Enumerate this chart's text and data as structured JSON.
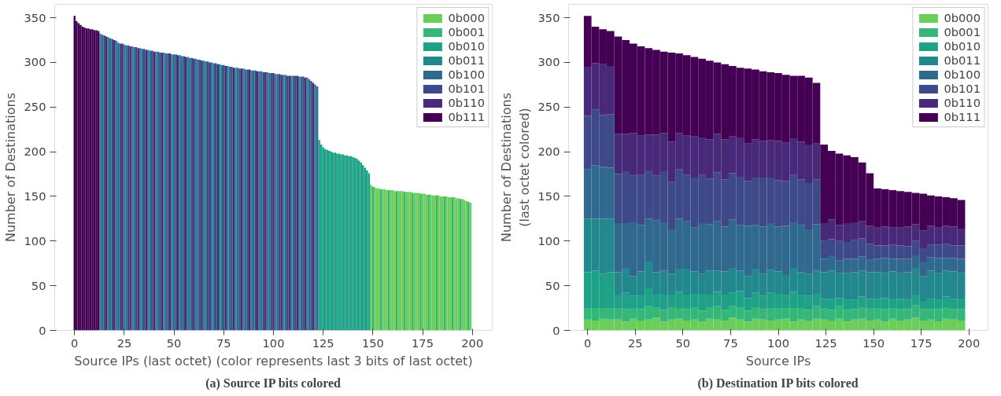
{
  "chart_data": [
    {
      "type": "bar",
      "xlabel": "Source IPs (last octet) (color represents last 3 bits of last octet)",
      "ylabel": "Number of Destinations",
      "xlim": [
        -10,
        210
      ],
      "ylim": [
        0,
        365
      ],
      "xticks": [
        0,
        25,
        50,
        75,
        100,
        125,
        150,
        175,
        200
      ],
      "yticks": [
        0,
        50,
        100,
        150,
        200,
        250,
        300,
        350
      ],
      "legend": "top right",
      "grid": false,
      "annotations": [
        "(a) Source IP bits colored"
      ],
      "series": [
        {
          "name": "0b000",
          "color": "#6ccd5a",
          "x": [
            149,
            151,
            152,
            153,
            155,
            156,
            157,
            159,
            160,
            161,
            163,
            164,
            165,
            167,
            168,
            169,
            171,
            172,
            173,
            175,
            176,
            177,
            179,
            180,
            181,
            183,
            184,
            185,
            187,
            188,
            189,
            191,
            192,
            193,
            195,
            196,
            197,
            199
          ],
          "values": [
            163,
            160,
            159,
            159,
            158,
            158,
            157,
            157,
            157,
            156,
            156,
            156,
            156,
            155,
            155,
            155,
            154,
            154,
            154,
            153,
            153,
            152,
            152,
            151,
            151,
            151,
            150,
            150,
            150,
            149,
            149,
            149,
            148,
            148,
            147,
            146,
            145,
            143
          ]
        },
        {
          "name": "0b001",
          "color": "#35b779",
          "x": [
            150,
            154,
            158,
            162,
            166,
            170,
            174,
            178,
            182,
            186,
            190,
            194,
            198
          ],
          "values": [
            161,
            158,
            157,
            156,
            155,
            154,
            153,
            152,
            151,
            150,
            149,
            147,
            144
          ]
        },
        {
          "name": "0b010",
          "color": "#1fa187",
          "x": [
            123,
            124,
            125,
            126,
            127,
            128,
            129,
            130,
            131,
            132,
            133,
            134,
            135,
            136,
            137,
            138,
            139,
            140,
            141,
            142,
            143,
            144,
            145,
            146,
            147,
            148
          ],
          "values": [
            213,
            208,
            205,
            203,
            202,
            201,
            200,
            199,
            199,
            198,
            198,
            197,
            197,
            196,
            196,
            195,
            195,
            194,
            193,
            192,
            190,
            188,
            185,
            182,
            179,
            176
          ]
        },
        {
          "name": "0b011",
          "color": "#23888e",
          "x": [
            13,
            17,
            21,
            25,
            29,
            33,
            37,
            41,
            45,
            49,
            53,
            57,
            61,
            65,
            69,
            73,
            77,
            81,
            85,
            89,
            93,
            97,
            101,
            105,
            109,
            113,
            117,
            121
          ],
          "values": [
            332,
            328,
            324,
            320,
            318,
            316,
            314,
            312,
            311,
            309,
            308,
            306,
            304,
            302,
            300,
            298,
            296,
            294,
            293,
            291,
            290,
            289,
            287,
            286,
            285,
            284,
            283,
            275
          ]
        },
        {
          "name": "0b100",
          "color": "#31688e",
          "x": [
            14,
            18,
            22,
            26,
            30,
            34,
            38,
            42,
            46,
            50,
            54,
            58,
            62,
            66,
            70,
            74,
            78,
            82,
            86,
            90,
            94,
            98,
            102,
            106,
            110,
            114,
            118,
            122
          ],
          "values": [
            331,
            327,
            322,
            319,
            317,
            315,
            313,
            312,
            310,
            309,
            307,
            305,
            303,
            301,
            299,
            297,
            295,
            294,
            292,
            291,
            290,
            288,
            287,
            286,
            285,
            284,
            281,
            273
          ]
        },
        {
          "name": "0b101",
          "color": "#3e4989",
          "x": [
            15,
            19,
            23,
            27,
            31,
            35,
            39,
            43,
            47,
            51,
            55,
            59,
            63,
            67,
            71,
            75,
            79,
            83,
            87,
            91,
            95,
            99,
            103,
            107,
            111,
            115,
            119
          ],
          "values": [
            330,
            326,
            321,
            319,
            317,
            315,
            313,
            311,
            310,
            309,
            307,
            305,
            303,
            301,
            299,
            297,
            295,
            293,
            292,
            291,
            289,
            288,
            287,
            285,
            285,
            284,
            279
          ]
        },
        {
          "name": "0b110",
          "color": "#482878",
          "x": [
            16,
            20,
            24,
            28,
            32,
            36,
            40,
            44,
            48,
            52,
            56,
            60,
            64,
            68,
            72,
            76,
            80,
            84,
            88,
            92,
            96,
            100,
            104,
            108,
            112,
            116,
            120
          ],
          "values": [
            329,
            325,
            321,
            318,
            316,
            314,
            312,
            311,
            310,
            308,
            306,
            304,
            302,
            300,
            298,
            296,
            294,
            293,
            292,
            290,
            289,
            288,
            286,
            285,
            285,
            283,
            277
          ]
        },
        {
          "name": "0b111",
          "color": "#440154",
          "x": [
            0,
            1,
            2,
            3,
            4,
            5,
            6,
            7,
            8,
            9,
            10,
            11,
            12
          ],
          "values": [
            352,
            346,
            344,
            342,
            340,
            339,
            338,
            338,
            337,
            337,
            336,
            336,
            335
          ]
        }
      ]
    },
    {
      "type": "bar",
      "stacked": true,
      "xlabel": "Source IPs",
      "ylabel": "Number of Destinations\n(last octet colored)",
      "xlim": [
        -10,
        210
      ],
      "ylim": [
        0,
        365
      ],
      "xticks": [
        0,
        25,
        50,
        75,
        100,
        125,
        150,
        175,
        200
      ],
      "yticks": [
        0,
        50,
        100,
        150,
        200,
        250,
        300,
        350
      ],
      "legend": "top right",
      "grid": false,
      "annotations": [
        "(b) Destination IP bits colored"
      ],
      "x": [
        0,
        4,
        8,
        12,
        16,
        20,
        24,
        28,
        32,
        36,
        40,
        44,
        48,
        52,
        56,
        60,
        64,
        68,
        72,
        76,
        80,
        84,
        88,
        92,
        96,
        100,
        104,
        108,
        112,
        116,
        120,
        124,
        128,
        132,
        136,
        140,
        144,
        148,
        152,
        156,
        160,
        164,
        168,
        172,
        176,
        180,
        184,
        188,
        192,
        196
      ],
      "series": [
        {
          "name": "0b000",
          "color": "#6ccd5a",
          "values": [
            12,
            11,
            13,
            12,
            12,
            10,
            13,
            11,
            12,
            14,
            10,
            12,
            13,
            11,
            12,
            10,
            13,
            12,
            11,
            14,
            12,
            10,
            13,
            12,
            11,
            12,
            13,
            10,
            12,
            11,
            13,
            12,
            11,
            13,
            10,
            12,
            13,
            11,
            12,
            10,
            13,
            11,
            12,
            14,
            11,
            12,
            10,
            13,
            12,
            11
          ]
        },
        {
          "name": "0b001",
          "color": "#35b779",
          "values": [
            13,
            14,
            12,
            13,
            13,
            14,
            12,
            13,
            15,
            12,
            13,
            14,
            12,
            13,
            14,
            12,
            13,
            15,
            12,
            13,
            14,
            12,
            13,
            12,
            14,
            13,
            12,
            15,
            13,
            12,
            14,
            13,
            12,
            14,
            13,
            12,
            13,
            14,
            13,
            14,
            12,
            13,
            12,
            14,
            13,
            12,
            14,
            13,
            12,
            13
          ]
        },
        {
          "name": "0b010",
          "color": "#1fa187",
          "values": [
            40,
            42,
            38,
            40,
            15,
            18,
            14,
            16,
            20,
            15,
            17,
            14,
            18,
            16,
            15,
            19,
            14,
            16,
            17,
            15,
            18,
            14,
            16,
            15,
            17,
            16,
            14,
            18,
            15,
            16,
            14,
            10,
            12,
            9,
            11,
            10,
            12,
            10,
            10,
            12,
            9,
            11,
            10,
            12,
            9,
            11,
            10,
            12,
            11,
            10
          ]
        },
        {
          "name": "0b011",
          "color": "#23888e",
          "values": [
            60,
            58,
            62,
            60,
            25,
            28,
            22,
            26,
            30,
            24,
            27,
            23,
            26,
            29,
            25,
            22,
            27,
            24,
            26,
            28,
            23,
            25,
            27,
            24,
            26,
            25,
            23,
            27,
            25,
            24,
            26,
            30,
            32,
            28,
            30,
            31,
            29,
            30,
            30,
            28,
            32,
            29,
            31,
            30,
            28,
            32,
            30,
            29,
            31,
            30
          ]
        },
        {
          "name": "0b100",
          "color": "#31688e",
          "values": [
            55,
            60,
            58,
            57,
            55,
            50,
            60,
            52,
            48,
            58,
            54,
            50,
            56,
            53,
            49,
            57,
            52,
            55,
            50,
            54,
            51,
            56,
            49,
            53,
            52,
            50,
            55,
            51,
            53,
            50,
            52,
            15,
            17,
            14,
            16,
            15,
            16,
            14,
            15,
            17,
            14,
            16,
            15,
            14,
            16,
            15,
            17,
            14,
            15,
            16
          ]
        },
        {
          "name": "0b101",
          "color": "#3e4989",
          "values": [
            60,
            62,
            58,
            60,
            55,
            58,
            52,
            56,
            54,
            50,
            57,
            53,
            55,
            52,
            56,
            54,
            51,
            55,
            53,
            52,
            54,
            50,
            53,
            55,
            51,
            52,
            50,
            53,
            51,
            52,
            50,
            20,
            18,
            22,
            19,
            21,
            20,
            18,
            15,
            14,
            16,
            15,
            14,
            16,
            15,
            14,
            15,
            16,
            14,
            15
          ]
        },
        {
          "name": "0b110",
          "color": "#482878",
          "values": [
            55,
            52,
            57,
            54,
            45,
            42,
            48,
            44,
            40,
            46,
            43,
            45,
            41,
            44,
            46,
            42,
            44,
            43,
            45,
            41,
            44,
            42,
            43,
            41,
            42,
            44,
            43,
            41,
            42,
            43,
            40,
            20,
            22,
            18,
            21,
            20,
            19,
            20,
            20,
            21,
            19,
            20,
            22,
            19,
            20,
            21,
            19,
            20,
            21,
            19
          ]
        },
        {
          "name": "0b111",
          "color": "#440154",
          "values": [
            57,
            41,
            39,
            39,
            109,
            105,
            100,
            100,
            97,
            95,
            91,
            100,
            89,
            90,
            89,
            88,
            88,
            80,
            84,
            79,
            78,
            84,
            78,
            78,
            76,
            76,
            76,
            70,
            74,
            75,
            68,
            88,
            77,
            80,
            76,
            73,
            66,
            59,
            44,
            42,
            42,
            41,
            39,
            35,
            41,
            34,
            35,
            32,
            32,
            32
          ]
        }
      ]
    }
  ]
}
